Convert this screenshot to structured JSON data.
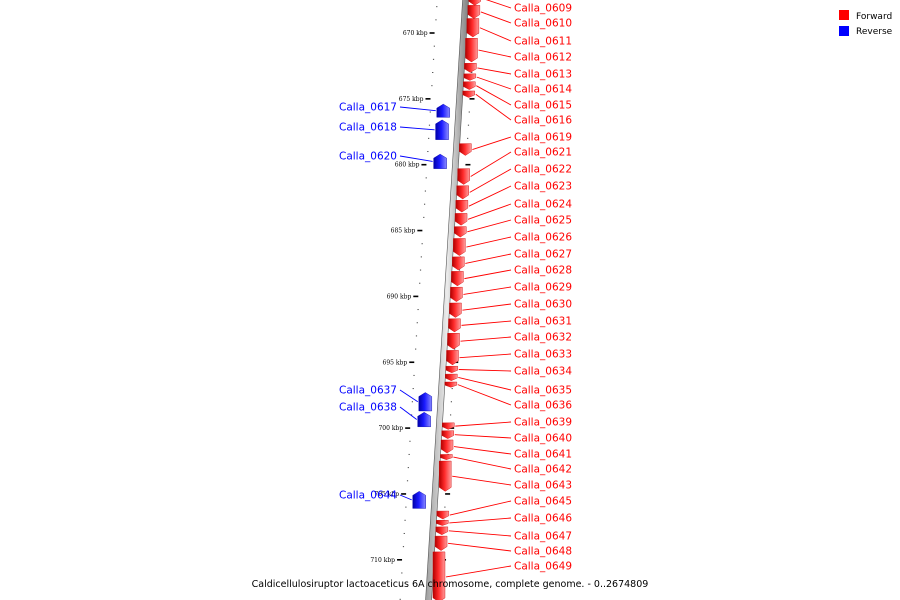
{
  "legend": [
    {
      "label": "Forward",
      "color": "#ff0000"
    },
    {
      "label": "Reverse",
      "color": "#0000ff"
    }
  ],
  "caption": "Caldicellulosiruptor lactoaceticus 6A chromosome, complete genome. - 0..2674809",
  "axis": {
    "unit": "kbp",
    "range_kbp": [
      666.8,
      713.2
    ],
    "ticks": [
      {
        "kbp": 670,
        "label": "670 kbp"
      },
      {
        "kbp": 675,
        "label": "675 kbp"
      },
      {
        "kbp": 680,
        "label": "680 kbp"
      },
      {
        "kbp": 685,
        "label": "685 kbp"
      },
      {
        "kbp": 690,
        "label": "690 kbp"
      },
      {
        "kbp": 695,
        "label": "695 kbp"
      },
      {
        "kbp": 700,
        "label": "700 kbp"
      },
      {
        "kbp": 705,
        "label": "705 kbp"
      },
      {
        "kbp": 710,
        "label": "710 kbp"
      }
    ]
  },
  "genes": {
    "forward": [
      {
        "name": "Calla_0609",
        "start": 666.8,
        "end": 667.9
      },
      {
        "name": "Calla_0610",
        "start": 667.9,
        "end": 668.9
      },
      {
        "name": "Calla_0611",
        "start": 668.9,
        "end": 670.3
      },
      {
        "name": "Calla_0612",
        "start": 670.4,
        "end": 672.2
      },
      {
        "name": "Calla_0613",
        "start": 672.3,
        "end": 673.0
      },
      {
        "name": "Calla_0614",
        "start": 673.1,
        "end": 673.6
      },
      {
        "name": "Calla_0615",
        "start": 673.7,
        "end": 674.3
      },
      {
        "name": "Calla_0616",
        "start": 674.4,
        "end": 674.9
      },
      {
        "name": "Calla_0619",
        "start": 678.4,
        "end": 679.3
      },
      {
        "name": "Calla_0621",
        "start": 680.3,
        "end": 681.5
      },
      {
        "name": "Calla_0622",
        "start": 681.6,
        "end": 682.6
      },
      {
        "name": "Calla_0623",
        "start": 682.7,
        "end": 683.6
      },
      {
        "name": "Calla_0624",
        "start": 683.7,
        "end": 684.6
      },
      {
        "name": "Calla_0625",
        "start": 684.7,
        "end": 685.5
      },
      {
        "name": "Calla_0626",
        "start": 685.6,
        "end": 686.9
      },
      {
        "name": "Calla_0627",
        "start": 687.0,
        "end": 688.0
      },
      {
        "name": "Calla_0628",
        "start": 688.1,
        "end": 689.2
      },
      {
        "name": "Calla_0629",
        "start": 689.3,
        "end": 690.4
      },
      {
        "name": "Calla_0630",
        "start": 690.5,
        "end": 691.6
      },
      {
        "name": "Calla_0631",
        "start": 691.7,
        "end": 692.7
      },
      {
        "name": "Calla_0632",
        "start": 692.8,
        "end": 694.0
      },
      {
        "name": "Calla_0633",
        "start": 694.1,
        "end": 695.2
      },
      {
        "name": "Calla_0634",
        "start": 695.3,
        "end": 695.8
      },
      {
        "name": "Calla_0635",
        "start": 695.9,
        "end": 696.4
      },
      {
        "name": "Calla_0636",
        "start": 696.5,
        "end": 696.9
      },
      {
        "name": "Calla_0639",
        "start": 699.6,
        "end": 700.1
      },
      {
        "name": "Calla_0640",
        "start": 700.2,
        "end": 700.8
      },
      {
        "name": "Calla_0641",
        "start": 700.9,
        "end": 701.9
      },
      {
        "name": "Calla_0642",
        "start": 702.0,
        "end": 702.4
      },
      {
        "name": "Calla_0643",
        "start": 702.5,
        "end": 704.8
      },
      {
        "name": "Calla_0645",
        "start": 706.3,
        "end": 706.9
      },
      {
        "name": "Calla_0646",
        "start": 707.0,
        "end": 707.4
      },
      {
        "name": "Calla_0647",
        "start": 707.5,
        "end": 708.1
      },
      {
        "name": "Calla_0648",
        "start": 708.2,
        "end": 709.3
      },
      {
        "name": "Calla_0649",
        "start": 709.4,
        "end": 713.2
      }
    ],
    "reverse": [
      {
        "name": "Calla_0617",
        "start": 675.4,
        "end": 676.4
      },
      {
        "name": "Calla_0618",
        "start": 676.6,
        "end": 678.1
      },
      {
        "name": "Calla_0620",
        "start": 679.2,
        "end": 680.3
      },
      {
        "name": "Calla_0637",
        "start": 697.3,
        "end": 698.7
      },
      {
        "name": "Calla_0638",
        "start": 698.8,
        "end": 699.9
      },
      {
        "name": "Calla_0644",
        "start": 704.8,
        "end": 706.1
      }
    ]
  }
}
